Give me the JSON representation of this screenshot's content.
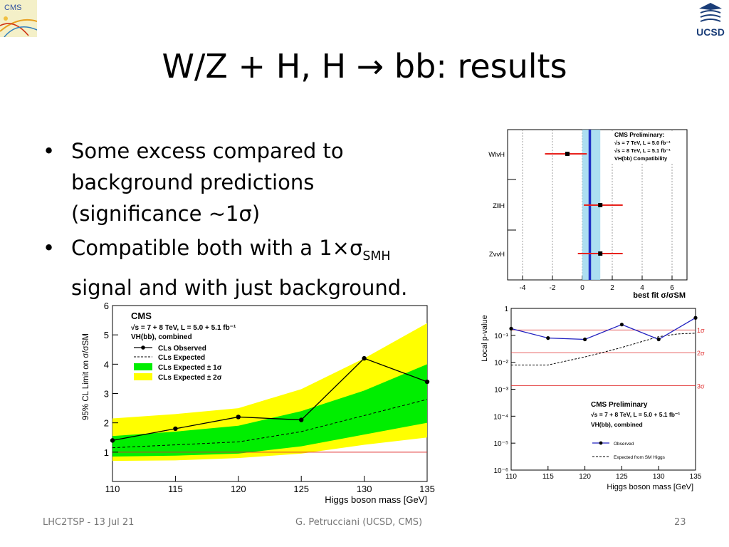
{
  "slide": {
    "title": "W/Z + H, H → bb: results",
    "bullets": [
      {
        "pre": "Some excess compared to background predictions (significance ~1σ)",
        "sub": "",
        "post": ""
      },
      {
        "pre": "Compatible both with a 1×σ",
        "sub": "SMH",
        "post": " signal and with just background."
      }
    ],
    "footer": {
      "left": "LHC2TSP - 13 Jul 21",
      "center": "G. Petrucciani (UCSD, CMS)",
      "page": "23"
    },
    "logos": {
      "left": "CMS",
      "right": "UCSD"
    }
  },
  "chart_data": [
    {
      "type": "scatter",
      "title": "",
      "legend": [
        "CMS Preliminary:",
        "√s = 7 TeV, L = 5.0 fb⁻¹",
        "√s = 8 TeV, L = 5.1 fb⁻¹",
        "VH(bb) Compatibility"
      ],
      "xlabel": "best fit σ/σSM",
      "xlim": [
        -5,
        7
      ],
      "xticks": [
        -4,
        -2,
        0,
        2,
        4,
        6
      ],
      "combined": {
        "value": 0.5,
        "band": [
          0.0,
          1.2
        ]
      },
      "categories": [
        "WlνH",
        "ZllH",
        "ZννH"
      ],
      "values": [
        -1.0,
        1.2,
        1.2
      ],
      "errors": [
        [
          -2.5,
          0.3
        ],
        [
          0.1,
          2.7
        ],
        [
          -0.3,
          2.7
        ]
      ],
      "colors": {
        "band": "#9ed8ef",
        "line": "#1f2fc4",
        "err": "#e8231e"
      }
    },
    {
      "type": "line",
      "title": "CMS",
      "legend": [
        "√s = 7 + 8 TeV, L = 5.0 + 5.1 fb⁻¹",
        "VH(bb), combined",
        "CLs Observed",
        "CLs Expected",
        "CLs Expected ± 1σ",
        "CLs Expected ± 2σ"
      ],
      "xlabel": "Higgs boson mass [GeV]",
      "ylabel": "95% CL Limit on σ/σSM",
      "xlim": [
        110,
        135
      ],
      "ylim": [
        0,
        6
      ],
      "xticks": [
        110,
        115,
        120,
        125,
        130,
        135
      ],
      "yticks": [
        1,
        2,
        3,
        4,
        5,
        6
      ],
      "reference": 1,
      "series": [
        {
          "name": "CLs Observed",
          "x": [
            110,
            115,
            120,
            125,
            130,
            135
          ],
          "values": [
            1.4,
            1.8,
            2.2,
            2.1,
            4.2,
            3.4
          ]
        },
        {
          "name": "CLs Expected",
          "x": [
            110,
            115,
            120,
            125,
            130,
            135
          ],
          "values": [
            1.15,
            1.25,
            1.35,
            1.7,
            2.25,
            2.8
          ]
        }
      ],
      "bands": {
        "x": [
          110,
          115,
          120,
          125,
          130,
          135
        ],
        "sigma1": {
          "lo": [
            0.85,
            0.88,
            0.95,
            1.2,
            1.6,
            2.0
          ],
          "hi": [
            1.55,
            1.7,
            1.9,
            2.4,
            3.1,
            4.0
          ]
        },
        "sigma2": {
          "lo": [
            0.7,
            0.72,
            0.8,
            0.95,
            1.25,
            1.5
          ],
          "hi": [
            2.15,
            2.3,
            2.5,
            3.15,
            4.2,
            5.4
          ]
        }
      },
      "colors": {
        "sigma1": "#00ee00",
        "sigma2": "#ffff00",
        "obs": "#000000",
        "ref": "#e03030"
      }
    },
    {
      "type": "line",
      "title": "CMS Preliminary",
      "legend": [
        "√s = 7 + 8 TeV, L = 5.0 + 5.1 fb⁻¹",
        "VH(bb), combined",
        "Observed",
        "Expected from SM Higgs"
      ],
      "xlabel": "Higgs boson mass [GeV]",
      "ylabel": "Local p-value",
      "xlim": [
        110,
        135
      ],
      "ylim_log10": [
        -6,
        0
      ],
      "xticks": [
        110,
        115,
        120,
        125,
        130,
        135
      ],
      "yticks": [
        "1",
        "10⁻¹",
        "10⁻²",
        "10⁻³",
        "10⁻⁴",
        "10⁻⁵",
        "10⁻⁶"
      ],
      "sigma_lines": [
        {
          "label": "1σ",
          "p": 0.1587
        },
        {
          "label": "2σ",
          "p": 0.02275
        },
        {
          "label": "3σ",
          "p": 0.00135
        }
      ],
      "series": [
        {
          "name": "Observed",
          "x": [
            110,
            115,
            120,
            125,
            130,
            135
          ],
          "log10p": [
            -0.75,
            -1.1,
            -1.15,
            -0.6,
            -1.15,
            -0.35
          ]
        },
        {
          "name": "Expected from SM Higgs",
          "x": [
            110,
            112.5,
            115,
            117.5,
            120,
            122.5,
            125,
            127.5,
            130,
            132.5,
            135
          ],
          "log10p": [
            -2.1,
            -2.1,
            -2.1,
            -1.95,
            -1.8,
            -1.63,
            -1.45,
            -1.25,
            -1.05,
            -0.95,
            -0.92
          ]
        }
      ],
      "colors": {
        "obs": "#2020c0",
        "exp": "#000000",
        "sigma": "#e03030"
      }
    }
  ]
}
